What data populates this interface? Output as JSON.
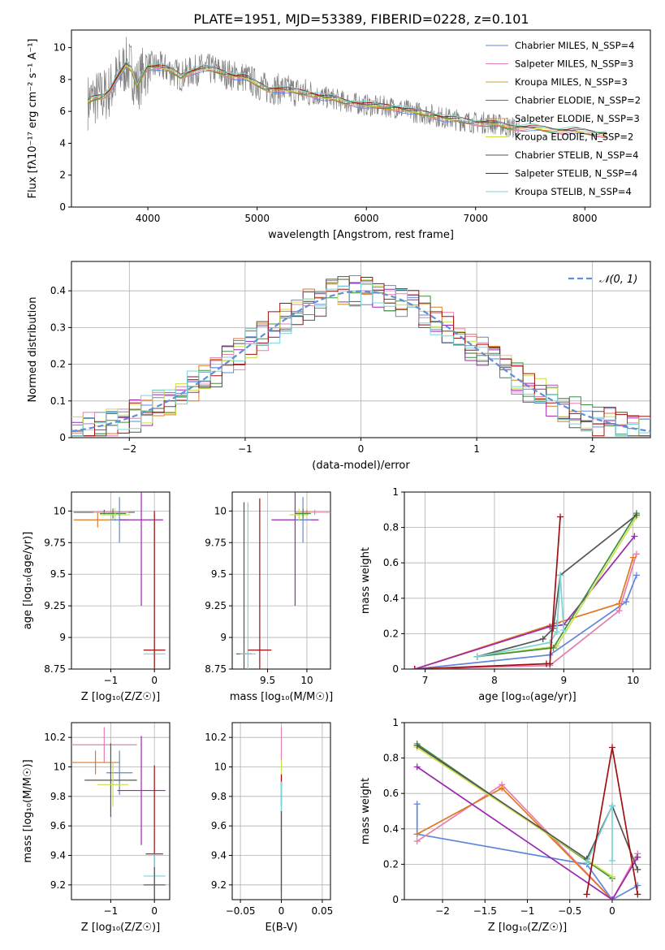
{
  "figure_title": "PLATE=1951, MJD=53389, FIBERID=0228, z=0.101",
  "colors": {
    "chabrier_miles": "#5f87d9",
    "salpeter_miles": "#e57fb0",
    "kroupa_miles": "#c8a23c",
    "chabrier_elodie": "#3f8f3f",
    "salpeter_elodie": "#e08a4a",
    "kroupa_elodie": "#c8e04a",
    "chabrier_stelib": "#555555",
    "salpeter_stelib": "#a01010",
    "kroupa_stelib": "#7ad3d6",
    "orange": "#e07820",
    "purple": "#9d28b0",
    "data_spectrum": "#808080",
    "gaussian": "#5f8fd9",
    "grid": "#b0b0b0"
  },
  "chart_data": [
    {
      "id": "spectrum",
      "type": "line",
      "xlabel": "wavelength [Angstrom, rest frame]",
      "ylabel": "Flux [fλ10⁻¹⁷ erg cm⁻² s⁻¹ A⁻¹]",
      "xlim": [
        3300,
        8600
      ],
      "ylim": [
        0,
        11.1
      ],
      "xticks": [
        4000,
        5000,
        6000,
        7000,
        8000
      ],
      "yticks": [
        0,
        2,
        4,
        6,
        8,
        10
      ],
      "grid": false,
      "legend_position": "top-right",
      "legend": [
        "Chabrier MILES, N_SSP=4",
        "Salpeter MILES, N_SSP=3",
        "Kroupa MILES, N_SSP=3",
        "Chabrier ELODIE, N_SSP=2",
        "Salpeter ELODIE, N_SSP=3",
        "Kroupa ELODIE, N_SSP=2",
        "Chabrier STELIB, N_SSP=4",
        "Salpeter STELIB, N_SSP=4",
        "Kroupa STELIB, N_SSP=4"
      ],
      "model_curve": {
        "x": [
          3450,
          3500,
          3550,
          3600,
          3650,
          3700,
          3750,
          3800,
          3850,
          3900,
          3950,
          4000,
          4100,
          4200,
          4300,
          4400,
          4500,
          4600,
          4700,
          4800,
          4850,
          4900,
          5000,
          5100,
          5200,
          5300,
          5400,
          5500,
          5600,
          5700,
          5800,
          5900,
          6000,
          6100,
          6200,
          6300,
          6400,
          6500,
          6600,
          6700,
          6800,
          6900,
          7000,
          7100,
          7200,
          7300,
          7400,
          7500,
          7600,
          7700,
          7800,
          7900,
          8000,
          8100,
          8200
        ],
        "y": [
          6.6,
          6.8,
          6.9,
          7.0,
          7.3,
          7.9,
          8.4,
          8.9,
          8.6,
          7.6,
          8.3,
          8.8,
          8.8,
          8.6,
          8.2,
          8.5,
          8.7,
          8.6,
          8.4,
          8.2,
          8.2,
          8.1,
          7.7,
          7.4,
          7.4,
          7.3,
          7.2,
          7.1,
          6.9,
          6.8,
          6.6,
          6.5,
          6.4,
          6.3,
          6.3,
          6.2,
          6.0,
          5.9,
          5.8,
          5.6,
          5.5,
          5.4,
          5.3,
          5.3,
          5.2,
          5.0,
          5.0,
          5.0,
          4.9,
          4.8,
          4.8,
          4.8,
          4.7,
          4.6,
          4.6
        ]
      }
    },
    {
      "id": "residuals",
      "type": "histogram",
      "xlabel": "(data-model)/error",
      "ylabel": "Normed distribution",
      "xlim": [
        -2.5,
        2.5
      ],
      "ylim": [
        0,
        0.48
      ],
      "xticks": [
        -2,
        -1,
        0,
        1,
        2
      ],
      "yticks": [
        0.0,
        0.1,
        0.2,
        0.3,
        0.4
      ],
      "grid": true,
      "legend_position": "top-right",
      "legend": [
        "𝒩(0, 1)"
      ],
      "gaussian": {
        "mean": 0,
        "sigma": 1
      }
    },
    {
      "id": "age_vs_z",
      "type": "errorbar",
      "xlabel": "Z [log₁₀(Z/Z☉)]",
      "ylabel": "age  [log₁₀(age/yr)]",
      "xlim": [
        -1.9,
        0.35
      ],
      "ylim": [
        8.75,
        10.15
      ],
      "xticks": [
        -1,
        0
      ],
      "yticks": [
        8.75,
        9.0,
        9.25,
        9.5,
        9.75,
        10.0
      ],
      "grid": true,
      "points": [
        {
          "color": "orange",
          "x": -1.3,
          "y": 9.93,
          "xerr": 0.55,
          "yerr": 0.06
        },
        {
          "color": "chabrier_stelib",
          "x": -1.15,
          "y": 9.99,
          "xerr": 0.7,
          "yerr": 0.02
        },
        {
          "color": "salpeter_miles",
          "x": -1.0,
          "y": 9.99,
          "xerr": 0.4,
          "yerr": 0.02
        },
        {
          "color": "chabrier_elodie",
          "x": -0.95,
          "y": 9.98,
          "xerr": 0.3,
          "yerr": 0.04
        },
        {
          "color": "kroupa_elodie",
          "x": -0.9,
          "y": 9.97,
          "xerr": 0.35,
          "yerr": 0.05
        },
        {
          "color": "chabrier_miles",
          "x": -0.8,
          "y": 9.93,
          "xerr": 0.2,
          "yerr": 0.18
        },
        {
          "color": "purple",
          "x": -0.3,
          "y": 9.93,
          "xerr": 0.5,
          "yerr": 0.68
        },
        {
          "color": "kroupa_stelib",
          "x": 0.0,
          "y": 8.87,
          "xerr": 0.25,
          "yerr": 1.1
        },
        {
          "color": "salpeter_stelib",
          "x": 0.0,
          "y": 8.9,
          "xerr": 0.25,
          "yerr": 1.1
        }
      ]
    },
    {
      "id": "age_vs_mass",
      "type": "errorbar",
      "xlabel": "mass [log₁₀(M/M☉)]",
      "ylabel": "",
      "xlim": [
        9.05,
        10.3
      ],
      "ylim": [
        8.75,
        10.15
      ],
      "xticks": [
        9.5,
        10.0
      ],
      "yticks": [
        8.75,
        9.0,
        9.25,
        9.5,
        9.75,
        10.0
      ],
      "grid": true,
      "points": [
        {
          "color": "chabrier_stelib",
          "x": 9.2,
          "y": 8.87,
          "xerr": 0.1,
          "yerr": 1.2
        },
        {
          "color": "kroupa_stelib",
          "x": 9.25,
          "y": 8.87,
          "xerr": 0.1,
          "yerr": 1.2
        },
        {
          "color": "salpeter_stelib",
          "x": 9.4,
          "y": 8.9,
          "xerr": 0.15,
          "yerr": 1.2
        },
        {
          "color": "purple",
          "x": 9.85,
          "y": 9.93,
          "xerr": 0.3,
          "yerr": 0.68
        },
        {
          "color": "orange",
          "x": 10.0,
          "y": 9.99,
          "xerr": 0.05,
          "yerr": 0.02
        },
        {
          "color": "chabrier_miles",
          "x": 9.95,
          "y": 9.93,
          "xerr": 0.1,
          "yerr": 0.18
        },
        {
          "color": "salpeter_miles",
          "x": 10.1,
          "y": 9.99,
          "xerr": 0.25,
          "yerr": 0.02
        },
        {
          "color": "kroupa_elodie",
          "x": 9.9,
          "y": 9.97,
          "xerr": 0.12,
          "yerr": 0.05
        },
        {
          "color": "chabrier_elodie",
          "x": 9.95,
          "y": 9.98,
          "xerr": 0.1,
          "yerr": 0.04
        }
      ]
    },
    {
      "id": "weight_vs_age",
      "type": "line",
      "xlabel": "age  [log₁₀(age/yr)]",
      "ylabel": "mass weight",
      "xlim": [
        6.7,
        10.25
      ],
      "ylim": [
        0,
        1.0
      ],
      "xticks": [
        7,
        8,
        9,
        10
      ],
      "yticks": [
        0.0,
        0.2,
        0.4,
        0.6,
        0.8,
        1.0
      ],
      "grid": true,
      "series": [
        {
          "color": "chabrier_miles",
          "x": [
            6.85,
            8.8,
            9.9,
            10.05
          ],
          "y": [
            0.0,
            0.08,
            0.38,
            0.53
          ]
        },
        {
          "color": "salpeter_miles",
          "x": [
            6.85,
            8.8,
            9.8,
            10.05
          ],
          "y": [
            0.0,
            0.02,
            0.33,
            0.65
          ]
        },
        {
          "color": "orange",
          "x": [
            6.85,
            8.9,
            9.8,
            10.0
          ],
          "y": [
            0.0,
            0.26,
            0.37,
            0.63
          ]
        },
        {
          "color": "purple",
          "x": [
            6.85,
            8.8,
            9.0,
            10.02
          ],
          "y": [
            0.0,
            0.24,
            0.25,
            0.75
          ]
        },
        {
          "color": "kroupa_elodie",
          "x": [
            7.75,
            8.9,
            10.05
          ],
          "y": [
            0.07,
            0.13,
            0.86
          ]
        },
        {
          "color": "chabrier_elodie",
          "x": [
            7.75,
            8.85,
            10.05
          ],
          "y": [
            0.07,
            0.12,
            0.88
          ]
        },
        {
          "color": "chabrier_stelib",
          "x": [
            7.75,
            8.7,
            8.85,
            8.95,
            10.05
          ],
          "y": [
            0.07,
            0.17,
            0.23,
            0.53,
            0.87
          ]
        },
        {
          "color": "kroupa_stelib",
          "x": [
            7.75,
            8.8,
            8.9,
            8.95,
            9.0
          ],
          "y": [
            0.07,
            0.15,
            0.21,
            0.53,
            0.22
          ]
        },
        {
          "color": "salpeter_stelib",
          "x": [
            6.85,
            8.75,
            8.8,
            8.95
          ],
          "y": [
            0.0,
            0.03,
            0.03,
            0.86
          ]
        }
      ]
    },
    {
      "id": "mass_vs_z",
      "type": "errorbar",
      "xlabel": "Z [log₁₀(Z/Z☉)]",
      "ylabel": "mass [log₁₀(M/M☉)]",
      "xlim": [
        -1.9,
        0.35
      ],
      "ylim": [
        9.1,
        10.3
      ],
      "xticks": [
        -1,
        0
      ],
      "yticks": [
        9.2,
        9.4,
        9.6,
        9.8,
        10.0,
        10.2
      ],
      "grid": true,
      "points": [
        {
          "color": "salpeter_miles",
          "x": -1.15,
          "y": 10.15,
          "xerr": 0.75,
          "yerr": 0.12
        },
        {
          "color": "orange",
          "x": -1.35,
          "y": 10.03,
          "xerr": 0.55,
          "yerr": 0.08
        },
        {
          "color": "chabrier_miles",
          "x": -0.8,
          "y": 9.96,
          "xerr": 0.3,
          "yerr": 0.15
        },
        {
          "color": "chabrier_stelib",
          "x": -1.0,
          "y": 9.91,
          "xerr": 0.6,
          "yerr": 0.25
        },
        {
          "color": "kroupa_elodie",
          "x": -0.95,
          "y": 9.88,
          "xerr": 0.35,
          "yerr": 0.15
        },
        {
          "color": "purple",
          "x": -0.3,
          "y": 9.84,
          "xerr": 0.55,
          "yerr": 0.37
        },
        {
          "color": "salpeter_stelib",
          "x": 0.0,
          "y": 9.41,
          "xerr": 0.2,
          "yerr": 0.6
        },
        {
          "color": "kroupa_stelib",
          "x": 0.0,
          "y": 9.26,
          "xerr": 0.25,
          "yerr": 0.15
        },
        {
          "color": "chabrier_stelib",
          "x": 0.0,
          "y": 9.2,
          "xerr": 0.25,
          "yerr": 0.12
        }
      ]
    },
    {
      "id": "mass_vs_ebv",
      "type": "errorbar",
      "xlabel": "E(B-V)",
      "ylabel": "",
      "xlim": [
        -0.06,
        0.06
      ],
      "ylim": [
        9.1,
        10.3
      ],
      "xticks": [
        -0.05,
        0.0,
        0.05
      ],
      "yticks": [
        9.2,
        9.4,
        9.6,
        9.8,
        10.0,
        10.2
      ],
      "grid": true,
      "points": [
        {
          "color": "salpeter_miles",
          "x": 0.0,
          "y": 10.15,
          "xerr": 0.0,
          "yerr": 0.12
        },
        {
          "color": "kroupa_elodie",
          "x": 0.0,
          "y": 9.95,
          "xerr": 0.0,
          "yerr": 0.1
        },
        {
          "color": "purple",
          "x": 0.0,
          "y": 9.84,
          "xerr": 0.0,
          "yerr": 0.1
        },
        {
          "color": "salpeter_stelib",
          "x": 0.0,
          "y": 9.55,
          "xerr": 0.0,
          "yerr": 0.4
        },
        {
          "color": "kroupa_stelib",
          "x": 0.0,
          "y": 9.5,
          "xerr": 0.0,
          "yerr": 0.4
        },
        {
          "color": "chabrier_stelib",
          "x": 0.0,
          "y": 9.4,
          "xerr": 0.0,
          "yerr": 0.3
        }
      ]
    },
    {
      "id": "weight_vs_z",
      "type": "line",
      "xlabel": "Z [log₁₀(Z/Z☉)]",
      "ylabel": "mass weight",
      "xlim": [
        -2.45,
        0.45
      ],
      "ylim": [
        0,
        1.0
      ],
      "xticks": [
        -2.0,
        -1.5,
        -1.0,
        -0.5,
        0.0
      ],
      "yticks": [
        0.0,
        0.2,
        0.4,
        0.6,
        0.8,
        1.0
      ],
      "grid": true,
      "series": [
        {
          "color": "chabrier_miles",
          "x": [
            -2.3,
            -2.3,
            -0.3,
            0.0,
            0.3
          ],
          "y": [
            0.54,
            0.37,
            0.2,
            0.0,
            0.08
          ]
        },
        {
          "color": "salpeter_miles",
          "x": [
            -2.3,
            -1.3,
            0.0,
            0.3
          ],
          "y": [
            0.33,
            0.65,
            0.0,
            0.26
          ]
        },
        {
          "color": "orange",
          "x": [
            -2.3,
            -1.3,
            0.0
          ],
          "y": [
            0.37,
            0.63,
            0.0
          ]
        },
        {
          "color": "purple",
          "x": [
            -2.3,
            0.0,
            0.3
          ],
          "y": [
            0.75,
            0.0,
            0.24
          ]
        },
        {
          "color": "chabrier_elodie",
          "x": [
            -2.3,
            0.0
          ],
          "y": [
            0.88,
            0.12
          ]
        },
        {
          "color": "kroupa_elodie",
          "x": [
            -2.3,
            0.0
          ],
          "y": [
            0.86,
            0.13
          ]
        },
        {
          "color": "chabrier_stelib",
          "x": [
            -2.3,
            -0.3,
            0.0,
            0.3
          ],
          "y": [
            0.87,
            0.23,
            0.53,
            0.17
          ]
        },
        {
          "color": "kroupa_stelib",
          "x": [
            -0.3,
            0.0,
            0.0
          ],
          "y": [
            0.21,
            0.53,
            0.22
          ]
        },
        {
          "color": "salpeter_stelib",
          "x": [
            -0.3,
            0.0,
            0.3
          ],
          "y": [
            0.03,
            0.86,
            0.03
          ]
        }
      ]
    }
  ]
}
